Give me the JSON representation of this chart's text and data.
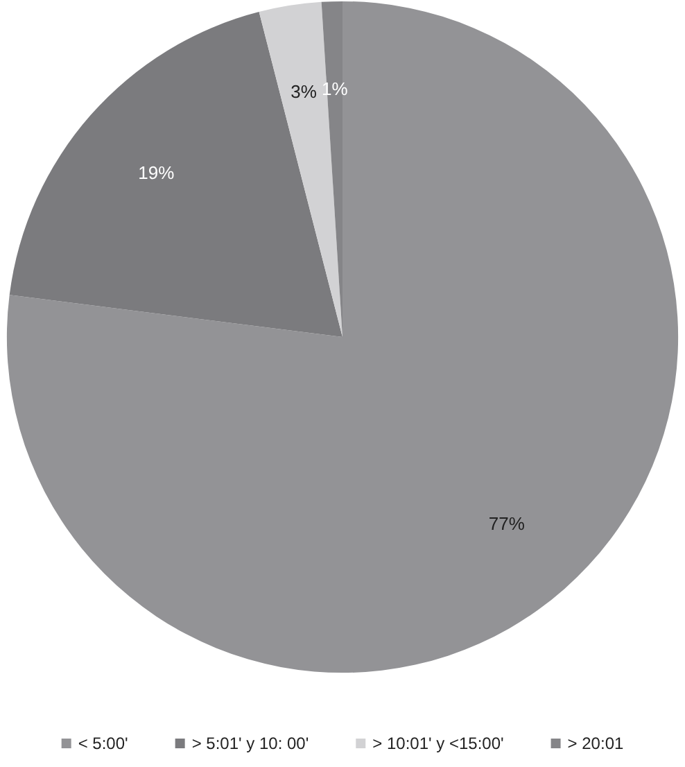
{
  "chart_data": {
    "type": "pie",
    "categories": [
      "< 5:00'",
      "> 5:01' y 10: 00'",
      "> 10:01' y <15:00'",
      "> 20:01"
    ],
    "values": [
      77,
      19,
      3,
      1
    ],
    "value_labels": [
      "77%",
      "19%",
      "3%",
      "1%"
    ],
    "colors": [
      "#939396",
      "#7b7b7e",
      "#d2d2d4",
      "#858588"
    ],
    "legend": "bottom"
  }
}
